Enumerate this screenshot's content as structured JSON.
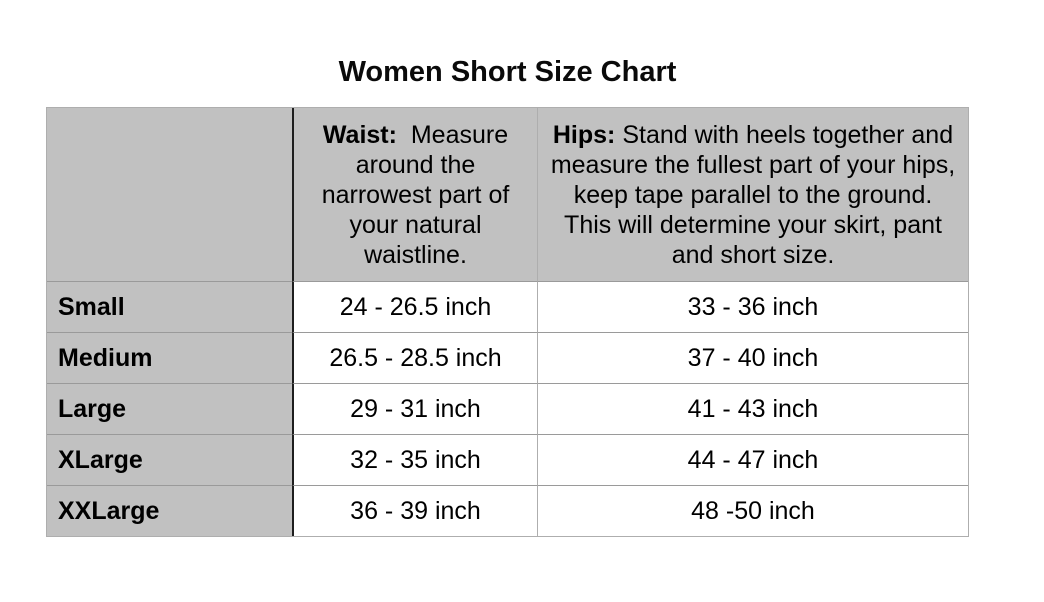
{
  "title": "Women Short Size Chart",
  "table": {
    "columns": {
      "size_header": "",
      "waist": {
        "label": "Waist:",
        "description": "  Measure\naround the\nnarrowest part of\nyour natural\nwaistline."
      },
      "hips": {
        "label": "Hips:",
        "description": " Stand with heels together and\nmeasure the fullest part of your hips,\nkeep tape parallel to the ground.\nThis will determine your skirt, pant\nand short size."
      }
    },
    "rows": [
      {
        "size": "Small",
        "waist": "24 - 26.5 inch",
        "hips": "33 - 36 inch"
      },
      {
        "size": "Medium",
        "waist": "26.5 - 28.5 inch",
        "hips": "37 - 40 inch"
      },
      {
        "size": "Large",
        "waist": "29 - 31 inch",
        "hips": "41 - 43 inch"
      },
      {
        "size": "XLarge",
        "waist": "32 - 35 inch",
        "hips": "44 - 47 inch"
      },
      {
        "size": "XXLarge",
        "waist": "36 - 39 inch",
        "hips": "48 -50 inch"
      }
    ],
    "colors": {
      "header_bg": "#c1c1c1",
      "label_column_bg": "#c1c1c1",
      "body_bg": "#ffffff",
      "grid_horizontal": "#9a9a9a",
      "grid_light": "#aeaeae",
      "divider_dark": "#1e1e1e",
      "text": "#000000"
    }
  }
}
